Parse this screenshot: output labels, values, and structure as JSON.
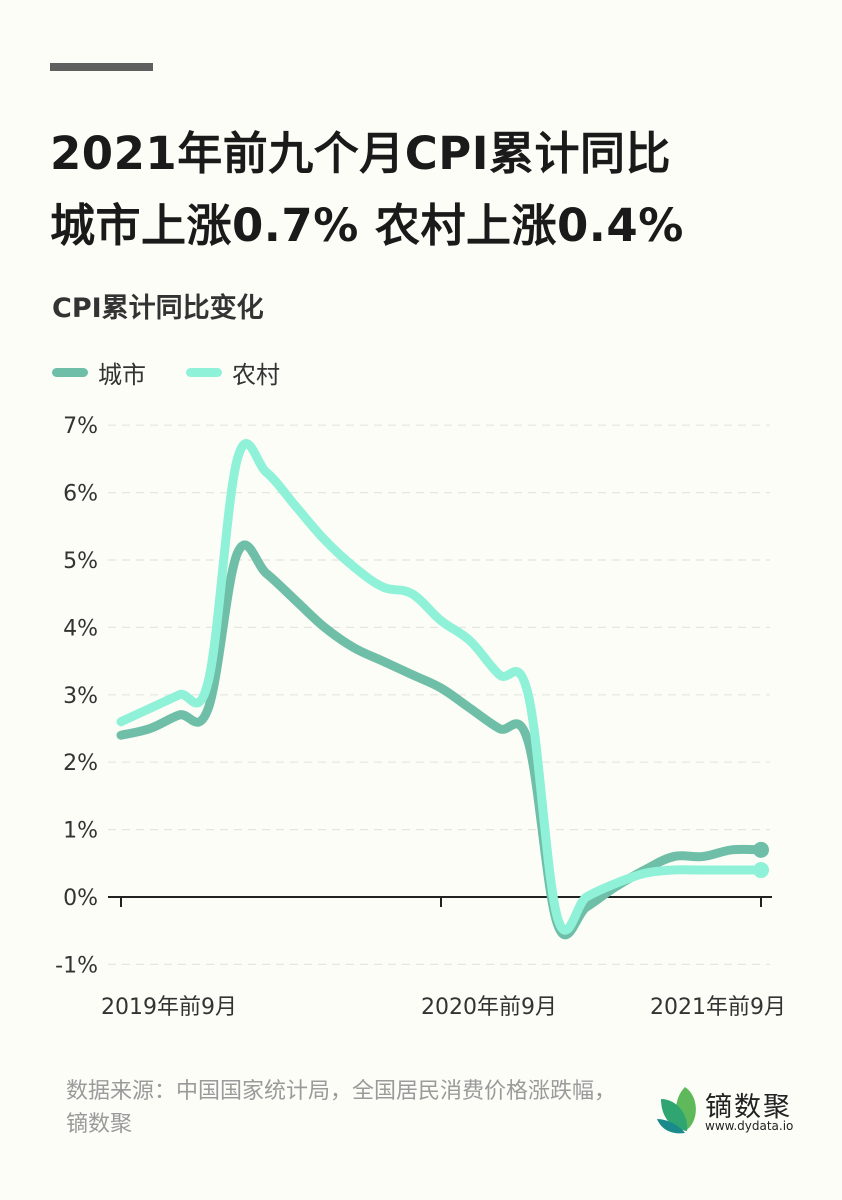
{
  "header": {
    "title_line1": "2021年前九个月CPI累计同比",
    "title_line2": "城市上涨0.7%  农村上涨0.4%"
  },
  "chart_data": {
    "type": "line",
    "title": "CPI累计同比变化",
    "x": [
      "2019-09",
      "2019-10",
      "2019-11",
      "2019-12",
      "2020-02",
      "2020-03",
      "2020-04",
      "2020-05",
      "2020-06",
      "2020-07",
      "2020-08",
      "2020-09",
      "2020-10",
      "2020-11",
      "2020-12",
      "2021-02",
      "2021-03",
      "2021-04",
      "2021-05",
      "2021-06",
      "2021-07",
      "2021-08",
      "2021-09"
    ],
    "xticks": [
      "2019年前9月",
      "2020年前9月",
      "2021年前9月"
    ],
    "yticks": [
      "-1%",
      "0%",
      "1%",
      "2%",
      "3%",
      "4%",
      "5%",
      "6%",
      "7%"
    ],
    "ylim": [
      -1,
      7
    ],
    "grid": true,
    "legend_position": "top-left",
    "series": [
      {
        "name": "城市",
        "color": "#6fbfa8",
        "values": [
          2.4,
          2.5,
          2.7,
          2.8,
          5.1,
          4.8,
          4.4,
          4.0,
          3.7,
          3.5,
          3.3,
          3.1,
          2.8,
          2.5,
          2.3,
          -0.4,
          -0.15,
          0.15,
          0.4,
          0.6,
          0.6,
          0.7,
          0.7
        ]
      },
      {
        "name": "农村",
        "color": "#8ff2d8",
        "values": [
          2.6,
          2.8,
          3.0,
          3.2,
          6.5,
          6.3,
          5.8,
          5.3,
          4.9,
          4.6,
          4.5,
          4.1,
          3.8,
          3.3,
          3.0,
          -0.3,
          0.0,
          0.2,
          0.35,
          0.4,
          0.4,
          0.4,
          0.4
        ]
      }
    ]
  },
  "footer": {
    "source": "数据来源：中国国家统计局，全国居民消费价格涨跌幅，镝数聚",
    "logo_name": "镝数聚",
    "logo_url": "www.dydata.io"
  }
}
